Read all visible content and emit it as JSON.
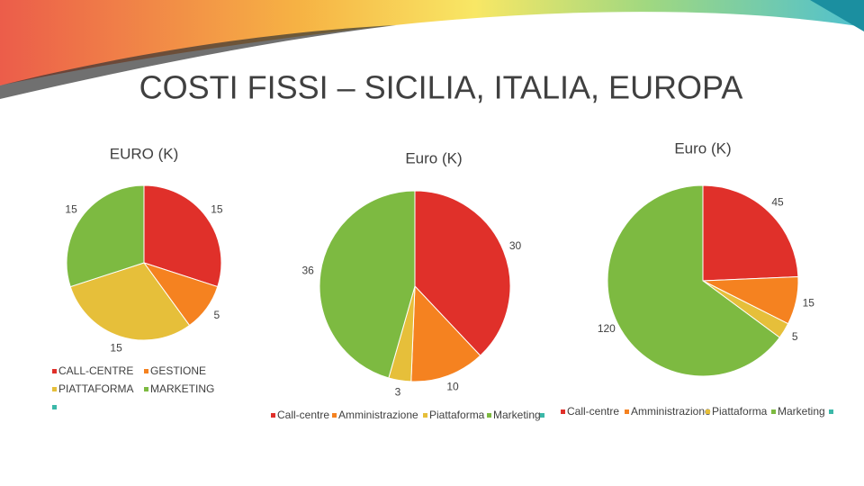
{
  "title": "COSTI FISSI – SICILIA, ITALIA, EUROPA",
  "chart_data": [
    {
      "type": "pie",
      "title": "EURO (K)",
      "categories": [
        "CALL-CENTRE",
        "GESTIONE",
        "PIATTAFORMA",
        "MARKETING"
      ],
      "values": [
        15,
        5,
        15,
        15
      ],
      "colors": [
        "#e0302a",
        "#f58220",
        "#e6bf3a",
        "#7dba41"
      ]
    },
    {
      "type": "pie",
      "title": "Euro (K)",
      "categories": [
        "Call-centre",
        "Amministrazione",
        "Piattaforma",
        "Marketing"
      ],
      "values": [
        30,
        10,
        3,
        36
      ],
      "colors": [
        "#e0302a",
        "#f58220",
        "#e6bf3a",
        "#7dba41"
      ]
    },
    {
      "type": "pie",
      "title": "Euro (K)",
      "categories": [
        "Call-centre",
        "Amministrazione",
        "Piattaforma",
        "Marketing"
      ],
      "values": [
        45,
        15,
        5,
        120
      ],
      "colors": [
        "#e0302a",
        "#f58220",
        "#e6bf3a",
        "#7dba41"
      ]
    }
  ]
}
